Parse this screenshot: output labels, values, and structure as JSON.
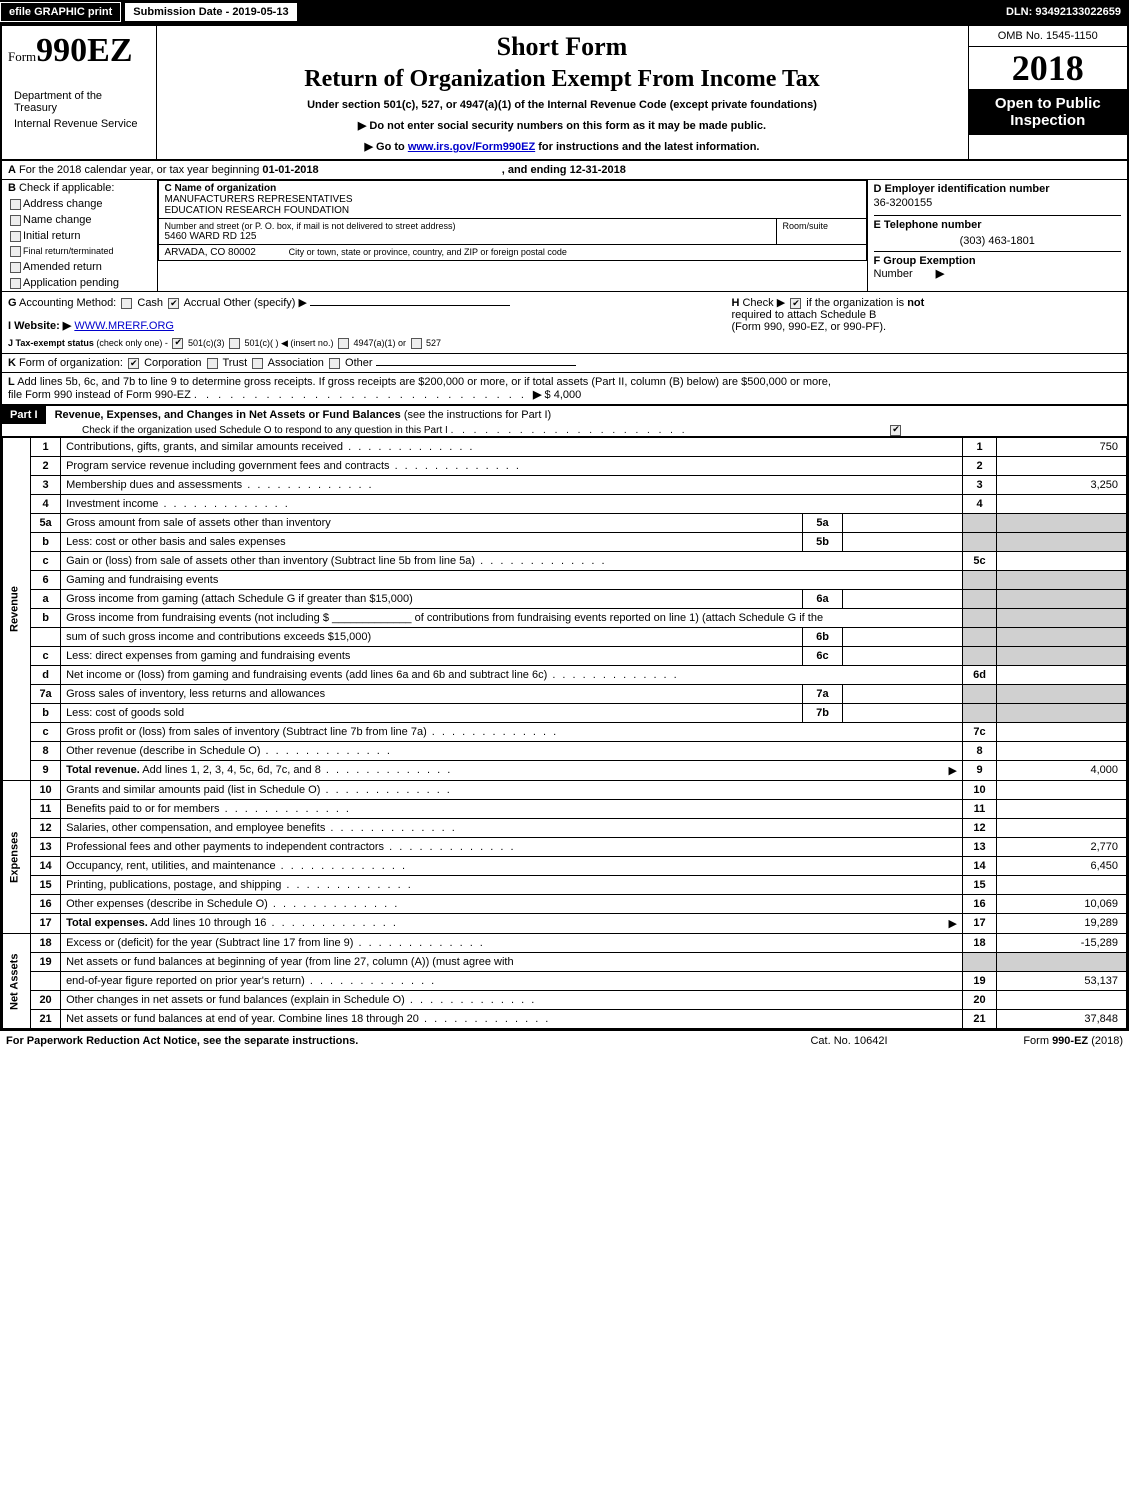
{
  "topbar": {
    "efile": "efile GRAPHIC print",
    "submission": "Submission Date - 2019-05-13",
    "dln": "DLN: 93492133022659"
  },
  "header": {
    "form_prefix": "Form",
    "form_number": "990EZ",
    "short_form": "Short Form",
    "main_title": "Return of Organization Exempt From Income Tax",
    "subtitle": "Under section 501(c), 527, or 4947(a)(1) of the Internal Revenue Code (except private foundations)",
    "warn1": "▶ Do not enter social security numbers on this form as it may be made public.",
    "warn2_pre": "▶ Go to ",
    "warn2_link": "www.irs.gov/Form990EZ",
    "warn2_post": " for instructions and the latest information.",
    "dept1": "Department of the Treasury",
    "dept2": "Internal Revenue Service",
    "omb": "OMB No. 1545-1150",
    "year": "2018",
    "open_public1": "Open to Public",
    "open_public2": "Inspection"
  },
  "lineA": {
    "label": "A",
    "text_pre": "For the 2018 calendar year, or tax year beginning ",
    "begin": "01-01-2018",
    "mid": ", and ending ",
    "end": "12-31-2018"
  },
  "lineB": {
    "label": "B",
    "text": "Check if applicable:",
    "opts": [
      "Address change",
      "Name change",
      "Initial return",
      "Final return/terminated",
      "Amended return",
      "Application pending"
    ]
  },
  "nameBlock": {
    "c_label": "C Name of organization",
    "c_name1": "MANUFACTURERS REPRESENTATIVES",
    "c_name2": "EDUCATION RESEARCH FOUNDATION",
    "addr_label": "Number and street (or P. O. box, if mail is not delivered to street address)",
    "addr": "5460 WARD RD 125",
    "room_label": "Room/suite",
    "city_label": "City or town, state or province, country, and ZIP or foreign postal code",
    "city": "ARVADA, CO  80002"
  },
  "rightInfo": {
    "d_label": "D Employer identification number",
    "d_val": "36-3200155",
    "e_label": "E Telephone number",
    "e_val": "(303) 463-1801",
    "f_label": "F Group Exemption",
    "f_label2": "Number",
    "f_arrow": "▶"
  },
  "lineG": {
    "label": "G",
    "text": "Accounting Method:",
    "cash": "Cash",
    "accrual": "Accrual",
    "other": "Other (specify) ▶"
  },
  "lineH": {
    "label": "H",
    "text1": "Check ▶",
    "text2": "if the organization is",
    "not": "not",
    "text3": "required to attach Schedule B",
    "text4": "(Form 990, 990-EZ, or 990-PF)."
  },
  "lineI": {
    "label": "I Website: ▶",
    "val": "WWW.MRERF.ORG"
  },
  "lineJ": {
    "label": "J Tax-exempt status",
    "small": "(check only one) -",
    "o1": "501(c)(3)",
    "o2": "501(c)(  ) ◀ (insert no.)",
    "o3": "4947(a)(1) or",
    "o4": "527"
  },
  "lineK": {
    "label": "K",
    "text": "Form of organization:",
    "o1": "Corporation",
    "o2": "Trust",
    "o3": "Association",
    "o4": "Other"
  },
  "lineL": {
    "label": "L",
    "text1": "Add lines 5b, 6c, and 7b to line 9 to determine gross receipts. If gross receipts are $200,000 or more, or if total assets (Part II, column (B) below) are $500,000 or more,",
    "text2": "file Form 990 instead of Form 990-EZ",
    "arrow": "▶",
    "amount": "$ 4,000"
  },
  "part1": {
    "label": "Part I",
    "title": "Revenue, Expenses, and Changes in Net Assets or Fund Balances",
    "paren": "(see the instructions for Part I)",
    "check_text": "Check if the organization used Schedule O to respond to any question in this Part I"
  },
  "sections": {
    "revenue": "Revenue",
    "expenses": "Expenses",
    "netassets": "Net Assets"
  },
  "rows": [
    {
      "n": "1",
      "d": "Contributions, gifts, grants, and similar amounts received",
      "ln": "1",
      "amt": "750"
    },
    {
      "n": "2",
      "d": "Program service revenue including government fees and contracts",
      "ln": "2",
      "amt": ""
    },
    {
      "n": "3",
      "d": "Membership dues and assessments",
      "ln": "3",
      "amt": "3,250"
    },
    {
      "n": "4",
      "d": "Investment income",
      "ln": "4",
      "amt": ""
    },
    {
      "n": "5a",
      "d": "Gross amount from sale of assets other than inventory",
      "inner": "5a",
      "shaded": true
    },
    {
      "n": "b",
      "d": "Less: cost or other basis and sales expenses",
      "inner": "5b",
      "shaded": true
    },
    {
      "n": "c",
      "d": "Gain or (loss) from sale of assets other than inventory (Subtract line 5b from line 5a)",
      "ln": "5c",
      "amt": ""
    },
    {
      "n": "6",
      "d": "Gaming and fundraising events",
      "shaded": true,
      "noline": true
    },
    {
      "n": "a",
      "d": "Gross income from gaming (attach Schedule G if greater than $15,000)",
      "inner": "6a",
      "shaded": true
    },
    {
      "n": "b",
      "d": "Gross income from fundraising events (not including $ _____________ of contributions from fundraising events reported on line 1) (attach Schedule G if the",
      "shaded": true,
      "noline": true
    },
    {
      "n": "",
      "d": "sum of such gross income and contributions exceeds $15,000)",
      "inner": "6b",
      "shaded": true
    },
    {
      "n": "c",
      "d": "Less: direct expenses from gaming and fundraising events",
      "inner": "6c",
      "shaded": true
    },
    {
      "n": "d",
      "d": "Net income or (loss) from gaming and fundraising events (add lines 6a and 6b and subtract line 6c)",
      "ln": "6d",
      "amt": ""
    },
    {
      "n": "7a",
      "d": "Gross sales of inventory, less returns and allowances",
      "inner": "7a",
      "shaded": true
    },
    {
      "n": "b",
      "d": "Less: cost of goods sold",
      "inner": "7b",
      "shaded": true
    },
    {
      "n": "c",
      "d": "Gross profit or (loss) from sales of inventory (Subtract line 7b from line 7a)",
      "ln": "7c",
      "amt": ""
    },
    {
      "n": "8",
      "d": "Other revenue (describe in Schedule O)",
      "ln": "8",
      "amt": ""
    },
    {
      "n": "9",
      "d": "Total revenue. Add lines 1, 2, 3, 4, 5c, 6d, 7c, and 8",
      "ln": "9",
      "amt": "4,000",
      "bold": true,
      "arrow": true
    }
  ],
  "exp_rows": [
    {
      "n": "10",
      "d": "Grants and similar amounts paid (list in Schedule O)",
      "ln": "10",
      "amt": ""
    },
    {
      "n": "11",
      "d": "Benefits paid to or for members",
      "ln": "11",
      "amt": ""
    },
    {
      "n": "12",
      "d": "Salaries, other compensation, and employee benefits",
      "ln": "12",
      "amt": ""
    },
    {
      "n": "13",
      "d": "Professional fees and other payments to independent contractors",
      "ln": "13",
      "amt": "2,770"
    },
    {
      "n": "14",
      "d": "Occupancy, rent, utilities, and maintenance",
      "ln": "14",
      "amt": "6,450"
    },
    {
      "n": "15",
      "d": "Printing, publications, postage, and shipping",
      "ln": "15",
      "amt": ""
    },
    {
      "n": "16",
      "d": "Other expenses (describe in Schedule O)",
      "ln": "16",
      "amt": "10,069"
    },
    {
      "n": "17",
      "d": "Total expenses. Add lines 10 through 16",
      "ln": "17",
      "amt": "19,289",
      "bold": true,
      "arrow": true
    }
  ],
  "na_rows": [
    {
      "n": "18",
      "d": "Excess or (deficit) for the year (Subtract line 17 from line 9)",
      "ln": "18",
      "amt": "-15,289"
    },
    {
      "n": "19",
      "d": "Net assets or fund balances at beginning of year (from line 27, column (A)) (must agree with",
      "shaded": true,
      "noline": true
    },
    {
      "n": "",
      "d": "end-of-year figure reported on prior year's return)",
      "ln": "19",
      "amt": "53,137"
    },
    {
      "n": "20",
      "d": "Other changes in net assets or fund balances (explain in Schedule O)",
      "ln": "20",
      "amt": ""
    },
    {
      "n": "21",
      "d": "Net assets or fund balances at end of year. Combine lines 18 through 20",
      "ln": "21",
      "amt": "37,848"
    }
  ],
  "footer": {
    "left": "For Paperwork Reduction Act Notice, see the separate instructions.",
    "mid": "Cat. No. 10642I",
    "right": "Form 990-EZ (2018)"
  },
  "colors": {
    "black": "#000000",
    "white": "#ffffff",
    "shaded": "#d0d0d0",
    "link": "#0000cc"
  }
}
